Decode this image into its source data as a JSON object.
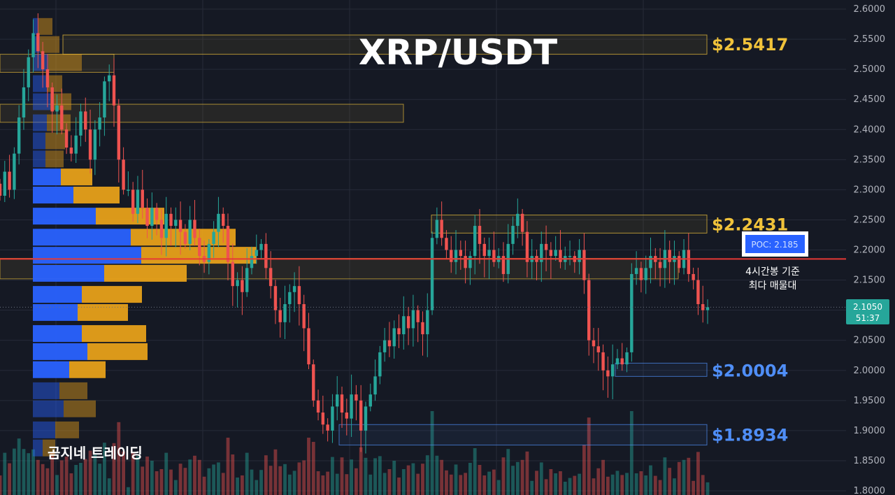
{
  "title": "XRP/USDT",
  "brand": "곰지네 트레이딩",
  "colors": {
    "background": "#151924",
    "up": "#26a69a",
    "down": "#ef5350",
    "gold": "#f0c23a",
    "blue": "#4f8ef7",
    "poc_line": "#e53935",
    "vp_up": "#2962ff",
    "vp_down": "#e6a01a",
    "grid": "#262b38"
  },
  "chart_data": {
    "type": "candlestick",
    "y_axis": {
      "min": 1.8,
      "max": 2.6,
      "position": "right",
      "ticks": [
        "2.6000",
        "2.5500",
        "2.5000",
        "2.4500",
        "2.4000",
        "2.3500",
        "2.3000",
        "2.2500",
        "2.2000",
        "2.1500",
        "2.1000",
        "2.0500",
        "2.0000",
        "1.9500",
        "1.9000",
        "1.8500",
        "1.8000"
      ]
    },
    "current_price": {
      "value": "2.1050",
      "countdown": "51:37"
    },
    "poc": {
      "label": "POC: 2.185",
      "value": 2.185,
      "note_line1": "4시간봉 기준",
      "note_line2": "최다 매물대"
    },
    "levels": [
      {
        "label": "$2.5417",
        "value": 2.5417,
        "color": "gold",
        "zone": [
          2.525,
          2.557
        ]
      },
      {
        "label": "$2.2431",
        "value": 2.2431,
        "color": "gold",
        "zone": [
          2.228,
          2.258
        ]
      },
      {
        "label": "$2.0004",
        "value": 2.0004,
        "color": "blue",
        "zone": [
          1.99,
          2.012
        ]
      },
      {
        "label": "$1.8934",
        "value": 1.8934,
        "color": "blue",
        "zone": [
          1.876,
          1.91
        ]
      }
    ],
    "extra_zones": [
      {
        "range": [
          2.495,
          2.525
        ],
        "color": "gold"
      },
      {
        "range": [
          2.412,
          2.442
        ],
        "color": "gold"
      },
      {
        "range": [
          2.152,
          2.186
        ],
        "color": "gold"
      }
    ],
    "closes": [
      2.29,
      2.33,
      2.3,
      2.36,
      2.42,
      2.47,
      2.52,
      2.56,
      2.53,
      2.5,
      2.47,
      2.43,
      2.44,
      2.4,
      2.37,
      2.36,
      2.39,
      2.43,
      2.4,
      2.35,
      2.4,
      2.42,
      2.48,
      2.49,
      2.44,
      2.35,
      2.3,
      2.3,
      2.26,
      2.3,
      2.27,
      2.24,
      2.27,
      2.25,
      2.22,
      2.26,
      2.24,
      2.25,
      2.23,
      2.21,
      2.25,
      2.22,
      2.19,
      2.18,
      2.21,
      2.23,
      2.26,
      2.24,
      2.18,
      2.14,
      2.15,
      2.13,
      2.17,
      2.19,
      2.2,
      2.21,
      2.17,
      2.14,
      2.1,
      2.08,
      2.11,
      2.13,
      2.14,
      2.11,
      2.07,
      2.01,
      1.95,
      1.93,
      1.91,
      1.9,
      1.94,
      1.96,
      1.93,
      1.92,
      1.96,
      1.95,
      1.9,
      1.94,
      1.96,
      1.99,
      2.03,
      2.05,
      2.04,
      2.07,
      2.06,
      2.09,
      2.07,
      2.1,
      2.08,
      2.06,
      2.1,
      2.22,
      2.25,
      2.22,
      2.2,
      2.18,
      2.2,
      2.19,
      2.17,
      2.19,
      2.24,
      2.21,
      2.19,
      2.2,
      2.18,
      2.19,
      2.16,
      2.21,
      2.24,
      2.26,
      2.23,
      2.18,
      2.19,
      2.18,
      2.21,
      2.2,
      2.19,
      2.2,
      2.18,
      2.19,
      2.19,
      2.18,
      2.2,
      2.15,
      2.05,
      2.04,
      2.03,
      2.0,
      1.99,
      2.01,
      2.02,
      2.01,
      2.03,
      2.16,
      2.17,
      2.15,
      2.17,
      2.19,
      2.18,
      2.17,
      2.2,
      2.18,
      2.19,
      2.17,
      2.2,
      2.16,
      2.15,
      2.11,
      2.1,
      2.105
    ],
    "volume_profile": [
      {
        "price": 2.57,
        "buy": 8,
        "sell": 20
      },
      {
        "price": 2.54,
        "buy": 10,
        "sell": 28
      },
      {
        "price": 2.51,
        "buy": 22,
        "sell": 48
      },
      {
        "price": 2.475,
        "buy": 20,
        "sell": 22
      },
      {
        "price": 2.445,
        "buy": 25,
        "sell": 30
      },
      {
        "price": 2.41,
        "buy": 20,
        "sell": 34
      },
      {
        "price": 2.38,
        "buy": 18,
        "sell": 28
      },
      {
        "price": 2.35,
        "buy": 18,
        "sell": 26
      },
      {
        "price": 2.32,
        "buy": 40,
        "sell": 45
      },
      {
        "price": 2.29,
        "buy": 58,
        "sell": 66
      },
      {
        "price": 2.255,
        "buy": 90,
        "sell": 98
      },
      {
        "price": 2.22,
        "buy": 140,
        "sell": 150
      },
      {
        "price": 2.19,
        "buy": 155,
        "sell": 165
      },
      {
        "price": 2.16,
        "buy": 102,
        "sell": 118
      },
      {
        "price": 2.125,
        "buy": 70,
        "sell": 86
      },
      {
        "price": 2.095,
        "buy": 64,
        "sell": 72
      },
      {
        "price": 2.06,
        "buy": 70,
        "sell": 92
      },
      {
        "price": 2.03,
        "buy": 78,
        "sell": 86
      },
      {
        "price": 2.0,
        "buy": 52,
        "sell": 52
      },
      {
        "price": 1.965,
        "buy": 38,
        "sell": 40
      },
      {
        "price": 1.935,
        "buy": 44,
        "sell": 46
      },
      {
        "price": 1.9,
        "buy": 32,
        "sell": 34
      },
      {
        "price": 1.87,
        "buy": 14,
        "sell": 18
      }
    ]
  }
}
